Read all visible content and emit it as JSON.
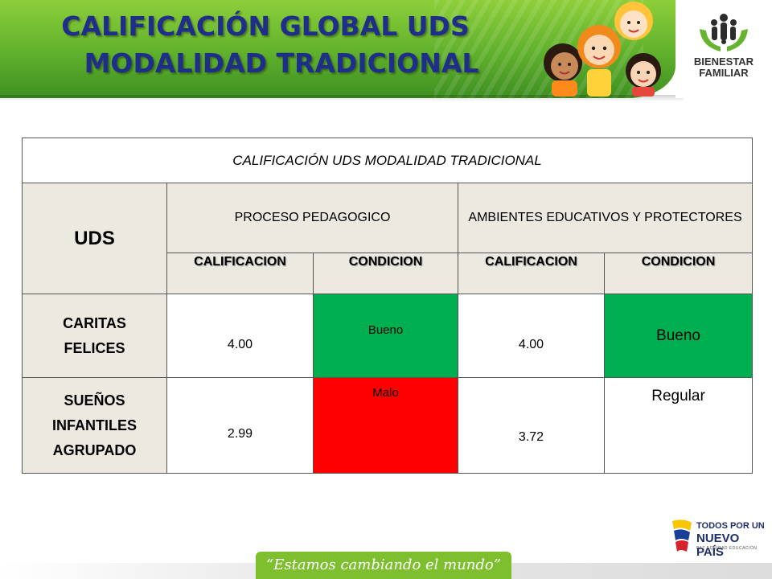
{
  "header": {
    "title_line1": "CALIFICACIÓN GLOBAL UDS",
    "title_line2": "MODALIDAD TRADICIONAL"
  },
  "logo": {
    "line1": "BIENESTAR",
    "line2": "FAMILIAR"
  },
  "table": {
    "caption": "CALIFICACIÓN UDS MODALIDAD TRADICIONAL",
    "uds_header": "UDS",
    "groups": [
      "PROCESO PEDAGOGICO",
      "AMBIENTES EDUCATIVOS Y PROTECTORES"
    ],
    "subheaders": [
      "CALIFICACION",
      "CONDICION",
      "CALIFICACION",
      "CONDICION"
    ],
    "rows": [
      {
        "name": "CARITAS FELICES",
        "pp_score": "4.00",
        "pp_condition": "Bueno",
        "ae_score": "4.00",
        "ae_condition": "Bueno"
      },
      {
        "name": "SUEÑOS INFANTILES AGRUPADO",
        "pp_score": "2.99",
        "pp_condition": "Malo",
        "ae_score": "3.72",
        "ae_condition": "Regular"
      }
    ],
    "colors": {
      "good": "#00b050",
      "bad": "#ff0000",
      "header_bg": "#ece9e1"
    }
  },
  "footer": {
    "slogan": "“Estamos cambiando el mundo”",
    "gov_line1": "TODOS POR UN",
    "gov_line2": "NUEVO PAÍS",
    "gov_line3": "PAZ  EQUIDAD  EDUCACIÓN"
  }
}
